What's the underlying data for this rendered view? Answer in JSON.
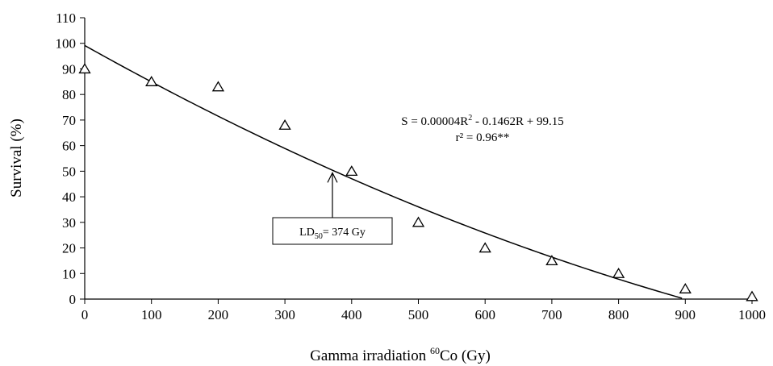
{
  "chart_data": {
    "type": "scatter",
    "xlabel": {
      "pre": "Gamma irradiation ",
      "sup": "60",
      "post": "Co (Gy)"
    },
    "ylabel": "Survival (%)",
    "xlim": [
      0,
      1000
    ],
    "ylim": [
      0,
      110
    ],
    "x_ticks": [
      0,
      100,
      200,
      300,
      400,
      500,
      600,
      700,
      800,
      900,
      1000
    ],
    "y_ticks": [
      0,
      10,
      20,
      30,
      40,
      50,
      60,
      70,
      80,
      90,
      100,
      110
    ],
    "grid": false,
    "points": {
      "marker": "triangle",
      "x": [
        0,
        100,
        200,
        300,
        400,
        500,
        600,
        700,
        800,
        900,
        1000
      ],
      "y": [
        90,
        85,
        83,
        68,
        50,
        30,
        20,
        15,
        10,
        4,
        1
      ]
    },
    "trendline": {
      "type": "polynomial",
      "coefficients": {
        "a": 4e-05,
        "b": -0.1462,
        "c": 99.15
      }
    },
    "annotations": {
      "equation": {
        "pre": "S = 0.00004R",
        "sup": "2",
        "post": " - 0.1462R + 99.15"
      },
      "r_squared": "r² = 0.96**",
      "ld50": {
        "pre": "LD",
        "sub": "50",
        "post": "= 374 Gy",
        "x": 374,
        "y": 50
      }
    }
  }
}
